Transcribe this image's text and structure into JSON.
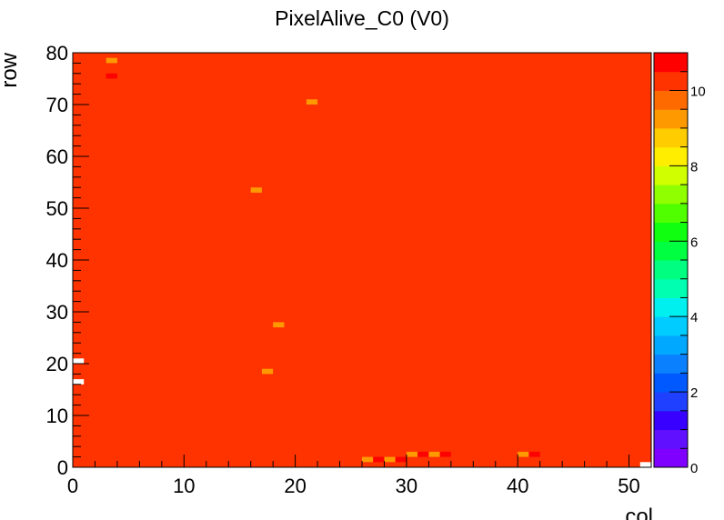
{
  "chart_data": {
    "type": "heatmap",
    "title": "PixelAlive_C0 (V0)",
    "xlabel": "col",
    "ylabel": "row",
    "xlim": [
      0,
      52
    ],
    "ylim": [
      0,
      80
    ],
    "zlim": [
      0,
      11
    ],
    "x_ticks": [
      0,
      10,
      20,
      30,
      40,
      50
    ],
    "y_ticks": [
      0,
      10,
      20,
      30,
      40,
      50,
      60,
      70,
      80
    ],
    "z_ticks": [
      0,
      2,
      4,
      6,
      8,
      10
    ],
    "z_levels": 20,
    "default_value": 10,
    "colorbar_colors": [
      "#7f00ff",
      "#6010ff",
      "#3800ff",
      "#2040ff",
      "#0058ff",
      "#0a80ff",
      "#00a8ff",
      "#00ccff",
      "#00f0f0",
      "#00ffb0",
      "#00ff80",
      "#00ff40",
      "#10ff10",
      "#50ff00",
      "#90ff00",
      "#d0ff00",
      "#ffee00",
      "#ffcc00",
      "#ff9900",
      "#ff6a00",
      "#ff3300",
      "#ff0000"
    ],
    "cells": [
      {
        "col": 3,
        "row": 78,
        "value": 9
      },
      {
        "col": 3,
        "row": 75,
        "value": 11
      },
      {
        "col": 21,
        "row": 70,
        "value": 9
      },
      {
        "col": 16,
        "row": 53,
        "value": 9
      },
      {
        "col": 18,
        "row": 27,
        "value": 9
      },
      {
        "col": 17,
        "row": 18,
        "value": 9
      },
      {
        "col": 0,
        "row": 20,
        "value": 0
      },
      {
        "col": 0,
        "row": 16,
        "value": 0
      },
      {
        "col": 26,
        "row": 1,
        "value": 9
      },
      {
        "col": 27,
        "row": 1,
        "value": 11
      },
      {
        "col": 28,
        "row": 1,
        "value": 9
      },
      {
        "col": 29,
        "row": 1,
        "value": 11
      },
      {
        "col": 30,
        "row": 2,
        "value": 9
      },
      {
        "col": 31,
        "row": 2,
        "value": 11
      },
      {
        "col": 32,
        "row": 2,
        "value": 9
      },
      {
        "col": 33,
        "row": 2,
        "value": 11
      },
      {
        "col": 40,
        "row": 2,
        "value": 9
      },
      {
        "col": 41,
        "row": 2,
        "value": 11
      },
      {
        "col": 51,
        "row": 0,
        "value": 0
      }
    ]
  }
}
